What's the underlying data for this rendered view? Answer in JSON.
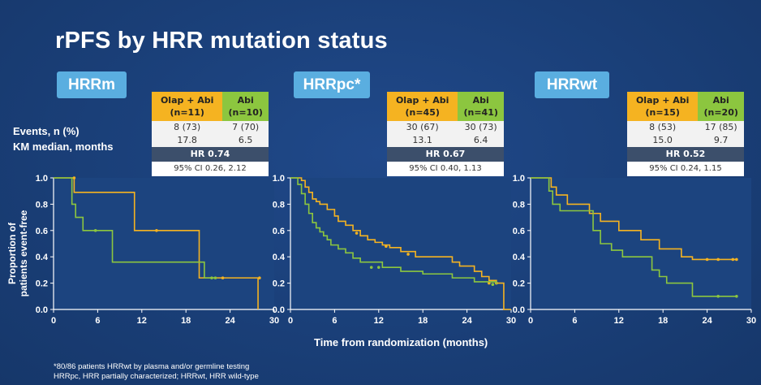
{
  "title": "rPFS by HRR mutation status",
  "row_labels": {
    "events": "Events, n (%)",
    "km": "KM median, months"
  },
  "y_axis_label_line1": "Proportion of",
  "y_axis_label_line2": "patients event-free",
  "x_axis_label": "Time from randomization (months)",
  "footnote_line1": "*80/86 patients HRRwt by plasma and/or germline testing",
  "footnote_line2": "HRRpc, HRR partially characterized; HRRwt, HRR wild-type",
  "colors": {
    "olap_abi": "#f5b321",
    "abi": "#8cc63f",
    "label_bg": "#5aaee0"
  },
  "panels": [
    {
      "label": "HRRm",
      "olap_header1": "Olap + Abi",
      "olap_header2": "(n=11)",
      "abi_header1": "Abi",
      "abi_header2": "(n=10)",
      "olap_events": "8 (73)",
      "abi_events": "7 (70)",
      "olap_km": "17.8",
      "abi_km": "6.5",
      "hr": "HR 0.74",
      "ci": "95% CI 0.26, 2.12"
    },
    {
      "label": "HRRpc*",
      "olap_header1": "Olap + Abi",
      "olap_header2": "(n=45)",
      "abi_header1": "Abi",
      "abi_header2": "(n=41)",
      "olap_events": "30 (67)",
      "abi_events": "30 (73)",
      "olap_km": "13.1",
      "abi_km": "6.4",
      "hr": "HR 0.67",
      "ci": "95% CI 0.40, 1.13"
    },
    {
      "label": "HRRwt",
      "olap_header1": "Olap + Abi",
      "olap_header2": "(n=15)",
      "abi_header1": "Abi",
      "abi_header2": "(n=20)",
      "olap_events": "8 (53)",
      "abi_events": "17 (85)",
      "olap_km": "15.0",
      "abi_km": "9.7",
      "hr": "HR 0.52",
      "ci": "95% CI 0.24, 1.15"
    }
  ],
  "chart_data": [
    {
      "type": "line",
      "title": "HRRm",
      "xlim": [
        0,
        30
      ],
      "ylim": [
        0,
        1.0
      ],
      "x_ticks": [
        "0",
        "6",
        "12",
        "18",
        "24",
        "30"
      ],
      "y_ticks": [
        "0.0",
        "0.2",
        "0.4",
        "0.6",
        "0.8",
        "1.0"
      ],
      "series": [
        {
          "name": "Olap + Abi",
          "color": "#f5b321",
          "x": [
            0,
            2.8,
            2.8,
            11.0,
            11.0,
            19.8,
            19.8,
            27.8,
            27.8
          ],
          "y": [
            1.0,
            1.0,
            0.89,
            0.89,
            0.6,
            0.6,
            0.24,
            0.24,
            0.0
          ],
          "censor_x": [
            2.8,
            14.0,
            23.0,
            28.0
          ],
          "censor_y": [
            1.0,
            0.6,
            0.24,
            0.24
          ]
        },
        {
          "name": "Abi",
          "color": "#8cc63f",
          "x": [
            0,
            2.5,
            2.5,
            3.0,
            3.0,
            4.0,
            4.0,
            8.0,
            8.0,
            20.5,
            20.5,
            22.0
          ],
          "y": [
            1.0,
            1.0,
            0.8,
            0.8,
            0.7,
            0.7,
            0.6,
            0.6,
            0.36,
            0.36,
            0.24,
            0.24
          ],
          "censor_x": [
            5.7,
            21.5,
            22.0
          ],
          "censor_y": [
            0.6,
            0.24,
            0.24
          ]
        }
      ]
    },
    {
      "type": "line",
      "title": "HRRpc*",
      "xlim": [
        0,
        30
      ],
      "ylim": [
        0,
        1.0
      ],
      "x_ticks": [
        "0",
        "6",
        "12",
        "18",
        "24",
        "30"
      ],
      "y_ticks": [
        "0.0",
        "0.2",
        "0.4",
        "0.6",
        "0.8",
        "1.0"
      ],
      "series": [
        {
          "name": "Olap + Abi",
          "color": "#f5b321",
          "x": [
            0,
            1.5,
            2.0,
            2.5,
            3.0,
            3.5,
            4.0,
            5.0,
            6.0,
            6.5,
            7.5,
            8.5,
            9.5,
            10.5,
            11.5,
            12.5,
            13.5,
            15.0,
            17.0,
            22.0,
            23.0,
            25.0,
            26.0,
            27.0,
            28.0,
            29.0,
            29.0,
            30.0
          ],
          "y": [
            1.0,
            0.98,
            0.93,
            0.89,
            0.84,
            0.82,
            0.8,
            0.76,
            0.71,
            0.67,
            0.64,
            0.6,
            0.56,
            0.53,
            0.51,
            0.49,
            0.47,
            0.44,
            0.4,
            0.36,
            0.33,
            0.29,
            0.25,
            0.22,
            0.2,
            0.2,
            0.0,
            0.0
          ],
          "censor_x": [
            9.0,
            13.0,
            16.0,
            27.0,
            28.0
          ],
          "censor_y": [
            0.58,
            0.48,
            0.42,
            0.2,
            0.2
          ]
        },
        {
          "name": "Abi",
          "color": "#8cc63f",
          "x": [
            0,
            1.0,
            1.5,
            2.0,
            2.5,
            3.0,
            3.5,
            4.0,
            4.5,
            5.0,
            5.5,
            6.5,
            7.5,
            8.5,
            9.5,
            12.5,
            15.0,
            18.0,
            22.0,
            25.0,
            28.0
          ],
          "y": [
            1.0,
            0.95,
            0.88,
            0.8,
            0.73,
            0.66,
            0.62,
            0.59,
            0.56,
            0.53,
            0.49,
            0.46,
            0.43,
            0.39,
            0.36,
            0.32,
            0.29,
            0.27,
            0.24,
            0.21,
            0.19
          ],
          "censor_x": [
            11.0,
            12.0,
            27.5
          ],
          "censor_y": [
            0.32,
            0.32,
            0.19
          ]
        }
      ]
    },
    {
      "type": "line",
      "title": "HRRwt",
      "xlim": [
        0,
        30
      ],
      "ylim": [
        0,
        1.0
      ],
      "x_ticks": [
        "0",
        "6",
        "12",
        "18",
        "24",
        "30"
      ],
      "y_ticks": [
        "0.0",
        "0.2",
        "0.4",
        "0.6",
        "0.8",
        "1.0"
      ],
      "series": [
        {
          "name": "Olap + Abi",
          "color": "#f5b321",
          "x": [
            0,
            2.8,
            2.8,
            3.5,
            3.5,
            5.0,
            5.0,
            8.0,
            8.0,
            9.5,
            9.5,
            12.0,
            12.0,
            15.0,
            15.0,
            17.5,
            17.5,
            20.5,
            20.5,
            22.0,
            22.0,
            28.0
          ],
          "y": [
            1.0,
            1.0,
            0.93,
            0.93,
            0.87,
            0.87,
            0.8,
            0.8,
            0.73,
            0.73,
            0.67,
            0.67,
            0.6,
            0.6,
            0.53,
            0.53,
            0.46,
            0.46,
            0.4,
            0.4,
            0.38,
            0.38
          ],
          "censor_x": [
            24.0,
            25.5,
            27.5,
            28.0
          ],
          "censor_y": [
            0.38,
            0.38,
            0.38,
            0.38
          ]
        },
        {
          "name": "Abi",
          "color": "#8cc63f",
          "x": [
            0,
            2.5,
            2.5,
            3.0,
            3.0,
            4.0,
            4.0,
            8.5,
            8.5,
            9.5,
            9.5,
            11.0,
            11.0,
            12.5,
            12.5,
            16.5,
            16.5,
            17.5,
            17.5,
            18.5,
            18.5,
            22.0,
            22.0,
            28.0
          ],
          "y": [
            1.0,
            1.0,
            0.9,
            0.9,
            0.8,
            0.8,
            0.75,
            0.75,
            0.6,
            0.6,
            0.5,
            0.5,
            0.45,
            0.45,
            0.4,
            0.4,
            0.3,
            0.3,
            0.25,
            0.25,
            0.2,
            0.2,
            0.1,
            0.1
          ],
          "censor_x": [
            25.5,
            28.0
          ],
          "censor_y": [
            0.1,
            0.1
          ]
        }
      ]
    }
  ]
}
